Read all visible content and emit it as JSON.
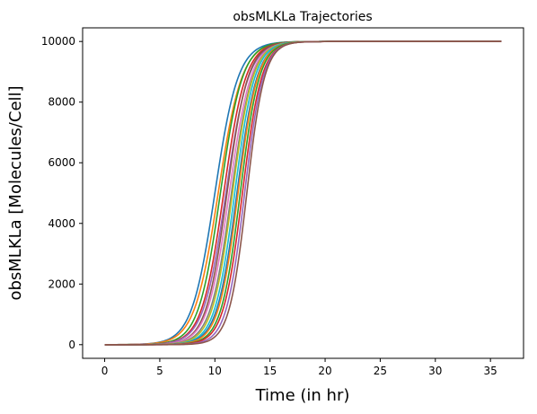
{
  "chart_data": {
    "type": "line",
    "title": "obsMLKLa Trajectories",
    "xlabel": "Time (in hr)",
    "ylabel": "obsMLKLa [Molecules/Cell]",
    "xlim": [
      -2,
      38
    ],
    "ylim": [
      -450,
      10450
    ],
    "xticks": [
      0,
      5,
      10,
      15,
      20,
      25,
      30,
      35
    ],
    "yticks": [
      0,
      2000,
      4000,
      6000,
      8000,
      10000
    ],
    "grid": false,
    "legend": "none",
    "plateau": 10000,
    "x_start": 0,
    "x_end": 36,
    "palette": [
      "#1f77b4",
      "#ff7f0e",
      "#2ca02c",
      "#d62728",
      "#9467bd",
      "#8c564b",
      "#e377c2",
      "#7f7f7f",
      "#bcbd22",
      "#17becf"
    ],
    "series": [
      {
        "midpoint": 10.0,
        "rate": 0.95
      },
      {
        "midpoint": 10.3,
        "rate": 0.93
      },
      {
        "midpoint": 10.5,
        "rate": 1.0
      },
      {
        "midpoint": 10.8,
        "rate": 1.0
      },
      {
        "midpoint": 11.0,
        "rate": 0.98
      },
      {
        "midpoint": 11.1,
        "rate": 1.05
      },
      {
        "midpoint": 11.3,
        "rate": 1.02
      },
      {
        "midpoint": 11.5,
        "rate": 1.05
      },
      {
        "midpoint": 11.6,
        "rate": 1.08
      },
      {
        "midpoint": 11.8,
        "rate": 1.1
      },
      {
        "midpoint": 12.0,
        "rate": 1.1
      },
      {
        "midpoint": 12.1,
        "rate": 1.12
      },
      {
        "midpoint": 12.3,
        "rate": 1.15
      },
      {
        "midpoint": 12.5,
        "rate": 1.15
      },
      {
        "midpoint": 12.7,
        "rate": 1.2
      },
      {
        "midpoint": 12.9,
        "rate": 1.25
      }
    ]
  }
}
